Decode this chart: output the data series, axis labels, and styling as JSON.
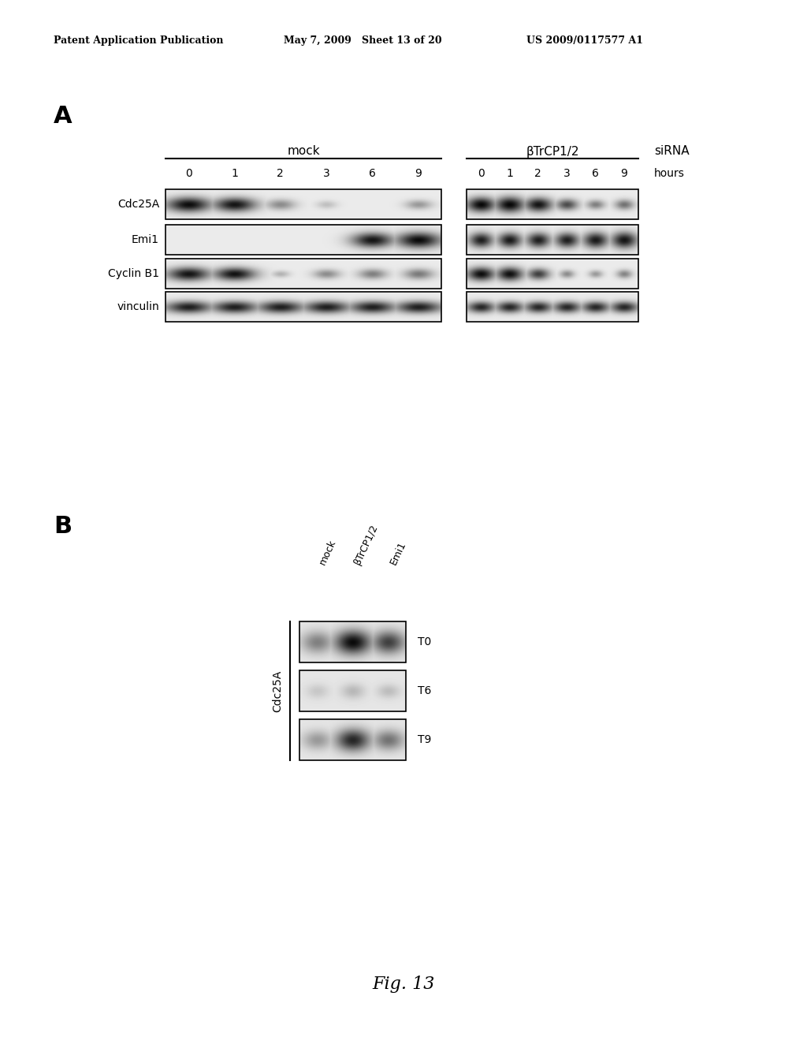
{
  "header_left": "Patent Application Publication",
  "header_mid": "May 7, 2009   Sheet 13 of 20",
  "header_right": "US 2009/0117577 A1",
  "panel_A_label": "A",
  "panel_B_label": "B",
  "mock_label": "mock",
  "bTrCP_label": "βTrCP1/2",
  "siRNA_label": "siRNA",
  "hours_label": "hours",
  "time_points": [
    "0",
    "1",
    "2",
    "3",
    "6",
    "9"
  ],
  "row_labels_A": [
    "Cdc25A",
    "Emi1",
    "Cyclin B1",
    "vinculin"
  ],
  "col_labels_B": [
    "mock",
    "βTrCP1/2",
    "Emi1"
  ],
  "row_labels_B": [
    "T0",
    "T6",
    "T9"
  ],
  "y_label_B": "Cdc25A",
  "fig_label": "Fig. 13",
  "bg_color": "#ffffff",
  "header_fontsize": 9,
  "panel_label_fontsize": 22,
  "row_label_fontsize": 10,
  "time_fontsize": 10,
  "group_label_fontsize": 11,
  "fig_label_fontsize": 16
}
